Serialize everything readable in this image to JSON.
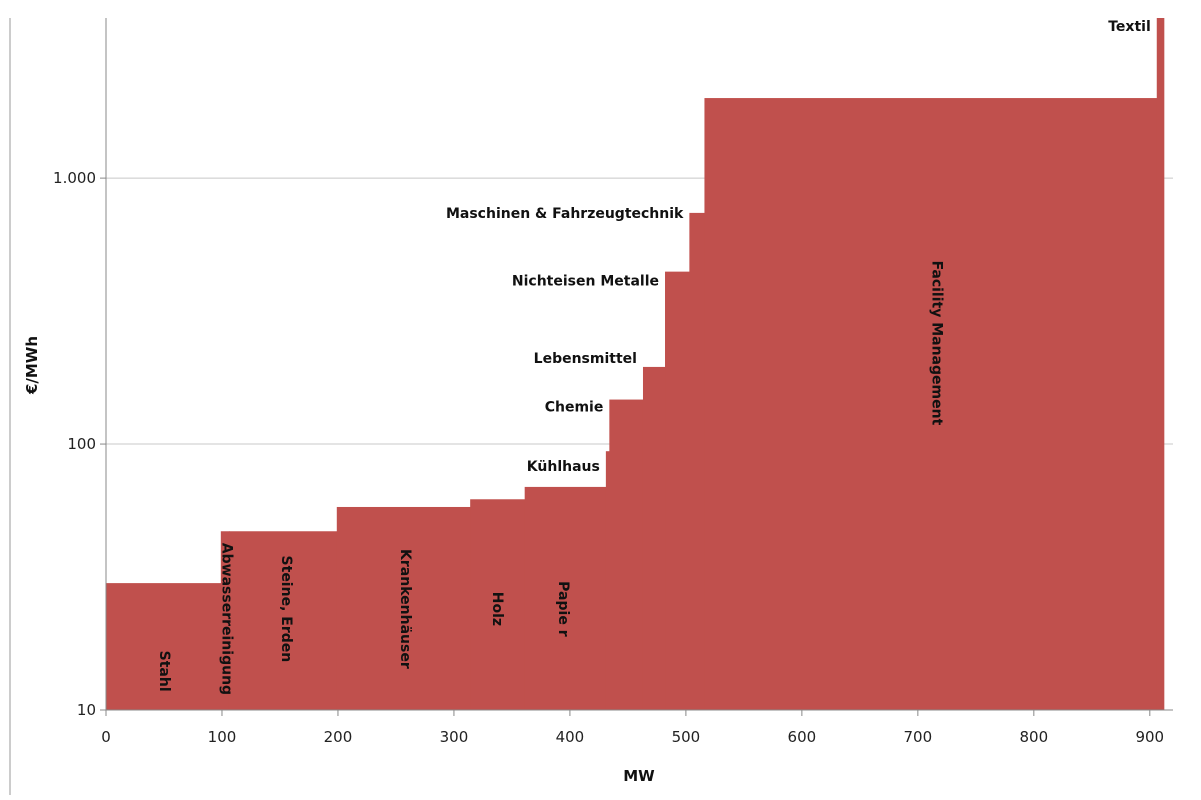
{
  "chart_data": {
    "type": "area",
    "title": "",
    "xlabel": "MW",
    "ylabel": "€/MWh",
    "xlim": [
      0,
      920
    ],
    "ylim": [
      10,
      4000
    ],
    "y_scale": "log",
    "grid": "horizontal",
    "legend": "none",
    "color": "#c0504d",
    "x_ticks": [
      "0",
      "100",
      "200",
      "300",
      "400",
      "500",
      "600",
      "700",
      "800",
      "900"
    ],
    "y_ticks": [
      {
        "value": 10,
        "label": "10"
      },
      {
        "value": 100,
        "label": "100"
      },
      {
        "value": 1000,
        "label": "1.000"
      }
    ],
    "series": [
      {
        "label": "Stahl",
        "x_start": 0,
        "x_end": 99,
        "value": 30
      },
      {
        "label": "Abwasserreinigung",
        "x_start": 99,
        "x_end": 106,
        "value": 47
      },
      {
        "label": "Steine, Erden",
        "x_start": 106,
        "x_end": 199,
        "value": 47
      },
      {
        "label": "Krankenhäuser",
        "x_start": 199,
        "x_end": 314,
        "value": 58
      },
      {
        "label": "Holz",
        "x_start": 314,
        "x_end": 361,
        "value": 62
      },
      {
        "label": "Papie r",
        "x_start": 361,
        "x_end": 431,
        "value": 69
      },
      {
        "label": "Kühlhaus",
        "x_start": 431,
        "x_end": 434,
        "value": 94
      },
      {
        "label": "Chemie",
        "x_start": 434,
        "x_end": 463,
        "value": 147
      },
      {
        "label": "Lebensmittel",
        "x_start": 463,
        "x_end": 482,
        "value": 195
      },
      {
        "label": "Nichteisen Metalle",
        "x_start": 482,
        "x_end": 503,
        "value": 445
      },
      {
        "label": "Maschinen & Fahrzeugtechnik",
        "x_start": 503,
        "x_end": 516,
        "value": 740
      },
      {
        "label": "Facility Management",
        "x_start": 516,
        "x_end": 906,
        "value": 2000
      },
      {
        "label": "Textil",
        "x_start": 906,
        "x_end": 912,
        "value": 4000
      }
    ]
  }
}
